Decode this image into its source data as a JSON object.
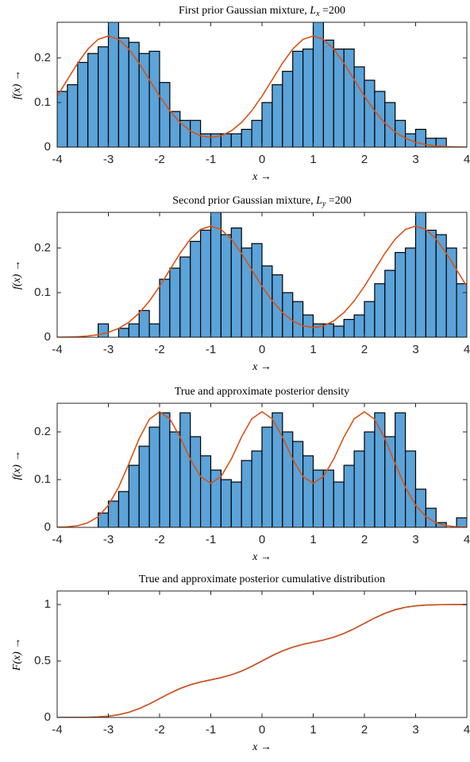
{
  "chart_data": [
    {
      "type": "histogram",
      "title": "First prior Gaussian mixture,",
      "title_var": "L",
      "title_sub": "x",
      "title_value": "=200",
      "xlabel": "x →",
      "ylabel": "f(x) →",
      "bins": [
        -4,
        -3.8,
        -3.6,
        -3.4,
        -3.2,
        -3,
        -2.8,
        -2.6,
        -2.4,
        -2.2,
        -2,
        -1.8,
        -1.6,
        -1.4,
        -1.2,
        -1,
        -0.8,
        -0.6,
        -0.4,
        -0.2,
        0,
        0.2,
        0.4,
        0.6,
        0.8,
        1,
        1.2,
        1.4,
        1.6,
        1.8,
        2,
        2.2,
        2.4,
        2.6,
        2.8,
        3,
        3.2,
        3.4,
        3.6,
        3.8,
        4
      ],
      "values": [
        0.125,
        0.14,
        0.19,
        0.21,
        0.225,
        0.3,
        0.245,
        0.235,
        0.21,
        0.215,
        0.145,
        0.08,
        0.06,
        0.06,
        0.03,
        0.03,
        0.03,
        0.03,
        0.04,
        0.06,
        0.1,
        0.14,
        0.17,
        0.215,
        0.22,
        0.3,
        0.24,
        0.22,
        0.22,
        0.18,
        0.15,
        0.125,
        0.1,
        0.06,
        0.03,
        0.04,
        0.02,
        0.02,
        0,
        0
      ],
      "color": "#5ba3d8",
      "curve": {
        "color": "#d95319",
        "x": [
          -4,
          -3.8,
          -3.6,
          -3.4,
          -3.2,
          -3,
          -2.8,
          -2.6,
          -2.4,
          -2.2,
          -2,
          -1.8,
          -1.6,
          -1.4,
          -1.2,
          -1,
          -0.8,
          -0.6,
          -0.4,
          -0.2,
          0,
          0.2,
          0.4,
          0.6,
          0.8,
          1,
          1.2,
          1.4,
          1.6,
          1.8,
          2,
          2.2,
          2.4,
          2.6,
          2.8,
          3,
          3.2,
          3.4,
          3.6,
          3.8,
          4
        ],
        "values": [
          0.1141,
          0.1512,
          0.1882,
          0.22,
          0.2417,
          0.2493,
          0.2417,
          0.22,
          0.1882,
          0.1513,
          0.1143,
          0.0815,
          0.0552,
          0.0365,
          0.0255,
          0.0218,
          0.0255,
          0.0365,
          0.0552,
          0.0815,
          0.1143,
          0.1513,
          0.1882,
          0.22,
          0.2417,
          0.2493,
          0.2417,
          0.22,
          0.1882,
          0.1512,
          0.1141,
          0.081,
          0.0539,
          0.0337,
          0.0198,
          0.0109,
          0.0057,
          0.0028,
          0.0013,
          0.0005,
          0.0002
        ]
      },
      "xlim": [
        -4,
        4
      ],
      "ylim": [
        0,
        0.28
      ],
      "xticks": [
        -4,
        -3,
        -2,
        -1,
        0,
        1,
        2,
        3,
        4
      ],
      "yticks": [
        0,
        0.1,
        0.2
      ]
    },
    {
      "type": "histogram",
      "title": "Second prior Gaussian mixture,",
      "title_var": "L",
      "title_sub": "y",
      "title_value": "=200",
      "xlabel": "x →",
      "ylabel": "f(x) →",
      "bins": [
        -4,
        -3.8,
        -3.6,
        -3.4,
        -3.2,
        -3,
        -2.8,
        -2.6,
        -2.4,
        -2.2,
        -2,
        -1.8,
        -1.6,
        -1.4,
        -1.2,
        -1,
        -0.8,
        -0.6,
        -0.4,
        -0.2,
        0,
        0.2,
        0.4,
        0.6,
        0.8,
        1,
        1.2,
        1.4,
        1.6,
        1.8,
        2,
        2.2,
        2.4,
        2.6,
        2.8,
        3,
        3.2,
        3.4,
        3.6,
        3.8,
        4
      ],
      "values": [
        0,
        0,
        0,
        0,
        0.03,
        0,
        0.02,
        0.03,
        0.06,
        0.03,
        0.13,
        0.155,
        0.18,
        0.215,
        0.24,
        0.3,
        0.23,
        0.245,
        0.2,
        0.21,
        0.16,
        0.14,
        0.1,
        0.08,
        0.05,
        0.03,
        0.03,
        0.025,
        0.04,
        0.05,
        0.08,
        0.12,
        0.15,
        0.19,
        0.2,
        0.3,
        0.24,
        0.23,
        0.2,
        0.12
      ],
      "color": "#5ba3d8",
      "curve": {
        "color": "#d95319",
        "x": [
          -4,
          -3.8,
          -3.6,
          -3.4,
          -3.2,
          -3,
          -2.8,
          -2.6,
          -2.4,
          -2.2,
          -2,
          -1.8,
          -1.6,
          -1.4,
          -1.2,
          -1,
          -0.8,
          -0.6,
          -0.4,
          -0.2,
          0,
          0.2,
          0.4,
          0.6,
          0.8,
          1,
          1.2,
          1.4,
          1.6,
          1.8,
          2,
          2.2,
          2.4,
          2.6,
          2.8,
          3,
          3.2,
          3.4,
          3.6,
          3.8,
          4
        ],
        "values": [
          0.0002,
          0.0005,
          0.0013,
          0.0028,
          0.0057,
          0.0109,
          0.0198,
          0.0337,
          0.0539,
          0.081,
          0.1141,
          0.1512,
          0.1882,
          0.22,
          0.2417,
          0.2493,
          0.2417,
          0.22,
          0.1882,
          0.1513,
          0.1143,
          0.0815,
          0.0552,
          0.0365,
          0.0255,
          0.0218,
          0.0255,
          0.0365,
          0.0552,
          0.0815,
          0.1143,
          0.1513,
          0.1882,
          0.22,
          0.2417,
          0.2493,
          0.2417,
          0.22,
          0.1882,
          0.1512,
          0.1141
        ]
      },
      "xlim": [
        -4,
        4
      ],
      "ylim": [
        0,
        0.28
      ],
      "xticks": [
        -4,
        -3,
        -2,
        -1,
        0,
        1,
        2,
        3,
        4
      ],
      "yticks": [
        0,
        0.1,
        0.2
      ]
    },
    {
      "type": "histogram",
      "title": "True and approximate posterior density",
      "xlabel": "x →",
      "ylabel": "f(x) →",
      "bins": [
        -4,
        -3.8,
        -3.6,
        -3.4,
        -3.2,
        -3,
        -2.8,
        -2.6,
        -2.4,
        -2.2,
        -2,
        -1.8,
        -1.6,
        -1.4,
        -1.2,
        -1,
        -0.8,
        -0.6,
        -0.4,
        -0.2,
        0,
        0.2,
        0.4,
        0.6,
        0.8,
        1,
        1.2,
        1.4,
        1.6,
        1.8,
        2,
        2.2,
        2.4,
        2.6,
        2.8,
        3,
        3.2,
        3.4,
        3.6,
        3.8,
        4
      ],
      "values": [
        0,
        0,
        0,
        0,
        0.03,
        0.055,
        0.075,
        0.13,
        0.17,
        0.21,
        0.24,
        0.2,
        0.24,
        0.19,
        0.15,
        0.12,
        0.1,
        0.095,
        0.14,
        0.16,
        0.21,
        0.24,
        0.2,
        0.18,
        0.15,
        0.12,
        0.12,
        0.095,
        0.13,
        0.16,
        0.2,
        0.24,
        0.19,
        0.24,
        0.16,
        0.08,
        0.04,
        0.01,
        0,
        0.02
      ],
      "color": "#5ba3d8",
      "curve": {
        "color": "#d95319",
        "x": [
          -4,
          -3.8,
          -3.6,
          -3.4,
          -3.2,
          -3,
          -2.8,
          -2.6,
          -2.4,
          -2.2,
          -2,
          -1.8,
          -1.6,
          -1.4,
          -1.2,
          -1,
          -0.8,
          -0.6,
          -0.4,
          -0.2,
          0,
          0.2,
          0.4,
          0.6,
          0.8,
          1,
          1.2,
          1.4,
          1.6,
          1.8,
          2,
          2.2,
          2.4,
          2.6,
          2.8,
          3,
          3.2,
          3.4,
          3.6,
          3.8,
          4
        ],
        "values": [
          0.0003,
          0.0011,
          0.0035,
          0.0095,
          0.0224,
          0.0463,
          0.084,
          0.1334,
          0.1856,
          0.2264,
          0.2421,
          0.2274,
          0.1891,
          0.1429,
          0.1064,
          0.0926,
          0.1064,
          0.1429,
          0.1891,
          0.2275,
          0.2424,
          0.2275,
          0.1891,
          0.1429,
          0.1064,
          0.0926,
          0.1064,
          0.1429,
          0.1891,
          0.2274,
          0.2421,
          0.2264,
          0.1856,
          0.1334,
          0.084,
          0.0463,
          0.0224,
          0.0095,
          0.0035,
          0.0011,
          0.0003
        ]
      },
      "xlim": [
        -4,
        4
      ],
      "ylim": [
        0,
        0.26
      ],
      "xticks": [
        -4,
        -3,
        -2,
        -1,
        0,
        1,
        2,
        3,
        4
      ],
      "yticks": [
        0,
        0.1,
        0.2
      ]
    },
    {
      "type": "line",
      "title": "True and approximate posterior cumulative distribution",
      "xlabel": "x →",
      "ylabel": "F(x) →",
      "x": [
        -4,
        -3.8,
        -3.6,
        -3.4,
        -3.2,
        -3,
        -2.8,
        -2.6,
        -2.4,
        -2.2,
        -2,
        -1.8,
        -1.6,
        -1.4,
        -1.2,
        -1,
        -0.8,
        -0.6,
        -0.4,
        -0.2,
        0,
        0.2,
        0.4,
        0.6,
        0.8,
        1,
        1.2,
        1.4,
        1.6,
        1.8,
        2,
        2.2,
        2.4,
        2.6,
        2.8,
        3,
        3.2,
        3.4,
        3.6,
        3.8,
        4
      ],
      "series": [
        {
          "color": "#0072bd",
          "values": [
            0,
            0.0002,
            0.0006,
            0.0018,
            0.0049,
            0.0115,
            0.0243,
            0.046,
            0.078,
            0.1193,
            0.1667,
            0.2142,
            0.2559,
            0.2892,
            0.3139,
            0.3333,
            0.3528,
            0.3775,
            0.4107,
            0.4525,
            0.5,
            0.5475,
            0.5893,
            0.6225,
            0.6472,
            0.6667,
            0.6861,
            0.7108,
            0.7441,
            0.7858,
            0.8333,
            0.8807,
            0.922,
            0.954,
            0.9757,
            0.9885,
            0.9951,
            0.9982,
            0.9994,
            0.9998,
            1
          ]
        },
        {
          "color": "#d95319",
          "values": [
            0,
            0.0002,
            0.0006,
            0.0018,
            0.0049,
            0.0115,
            0.0243,
            0.046,
            0.078,
            0.1193,
            0.1667,
            0.2142,
            0.2559,
            0.2892,
            0.3139,
            0.3333,
            0.3528,
            0.3775,
            0.4107,
            0.4525,
            0.5,
            0.5475,
            0.5893,
            0.6225,
            0.6472,
            0.6667,
            0.6861,
            0.7108,
            0.7441,
            0.7858,
            0.8333,
            0.8807,
            0.922,
            0.954,
            0.9757,
            0.9885,
            0.9951,
            0.9982,
            0.9994,
            0.9998,
            1
          ]
        }
      ],
      "xlim": [
        -4,
        4
      ],
      "ylim": [
        0,
        1.12
      ],
      "xticks": [
        -4,
        -3,
        -2,
        -1,
        0,
        1,
        2,
        3,
        4
      ],
      "yticks": [
        0,
        0.5,
        1
      ]
    }
  ]
}
